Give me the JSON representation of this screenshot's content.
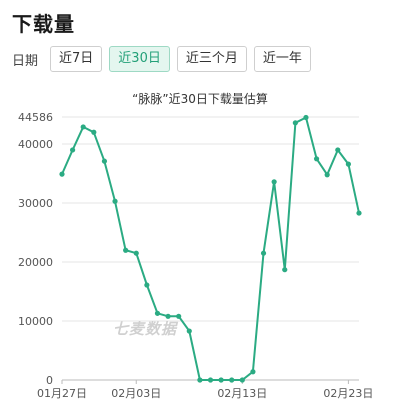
{
  "page": {
    "title": "下载量"
  },
  "filters": {
    "label": "日期",
    "options": [
      "近7日",
      "近30日",
      "近三个月",
      "近一年"
    ],
    "selected_index": 1
  },
  "watermark": "七麦数据",
  "colors": {
    "line": "#2bab83",
    "active_bg": "#e4f6ef",
    "active_text": "#23a078"
  },
  "chart_data": {
    "type": "line",
    "title": "“脉脉”近30日下载量估算",
    "ylim": [
      0,
      44586
    ],
    "yticks": [
      0,
      10000,
      20000,
      30000,
      40000,
      44586
    ],
    "ytick_labels": [
      "0",
      "10000",
      "20000",
      "30000",
      "40000",
      "44586"
    ],
    "xticks": [
      {
        "label": "01月27日",
        "index": 0
      },
      {
        "label": "02月03日",
        "index": 7
      },
      {
        "label": "02月13日",
        "index": 17
      },
      {
        "label": "02月23日",
        "index": 27
      }
    ],
    "series": [
      {
        "values": [
          34900,
          39000,
          42900,
          42000,
          37100,
          30300,
          22000,
          21500,
          16100,
          11300,
          10800,
          10800,
          8300,
          0,
          0,
          0,
          0,
          0,
          1400,
          21500,
          33600,
          18700,
          43600,
          44500,
          37500,
          34800,
          39000,
          36600,
          28300
        ]
      }
    ]
  }
}
